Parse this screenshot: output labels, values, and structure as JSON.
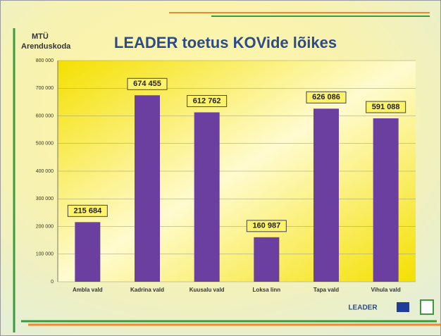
{
  "chart_data": {
    "type": "bar",
    "title": "LEADER toetus KOVide lõikes",
    "logo_text": [
      "MTÜ",
      "Arenduskoda"
    ],
    "footer_logo": "LEADER",
    "categories": [
      "Ambla vald",
      "Kadrina vald",
      "Kuusalu vald",
      "Loksa linn",
      "Tapa vald",
      "Vihula vald"
    ],
    "values": [
      215684,
      674455,
      612762,
      160987,
      626086,
      591088
    ],
    "value_labels": [
      "215 684",
      "674 455",
      "612 762",
      "160 987",
      "626 086",
      "591 088"
    ],
    "color": "#6a3fa0",
    "ylim": [
      0,
      800000
    ],
    "yticks": [
      0,
      {
        "value": 100000,
        "label": "100 000"
      },
      {
        "value": 200000,
        "label": "200 000"
      },
      {
        "value": 300000,
        "label": "300 000"
      },
      {
        "value": 400000,
        "label": "400 000"
      },
      {
        "value": 500000,
        "label": "500 000"
      },
      {
        "value": 600000,
        "label": "600 000"
      },
      {
        "value": 700000,
        "label": "700 000"
      },
      {
        "value": 800000,
        "label": "800 000"
      }
    ],
    "grid": true
  }
}
